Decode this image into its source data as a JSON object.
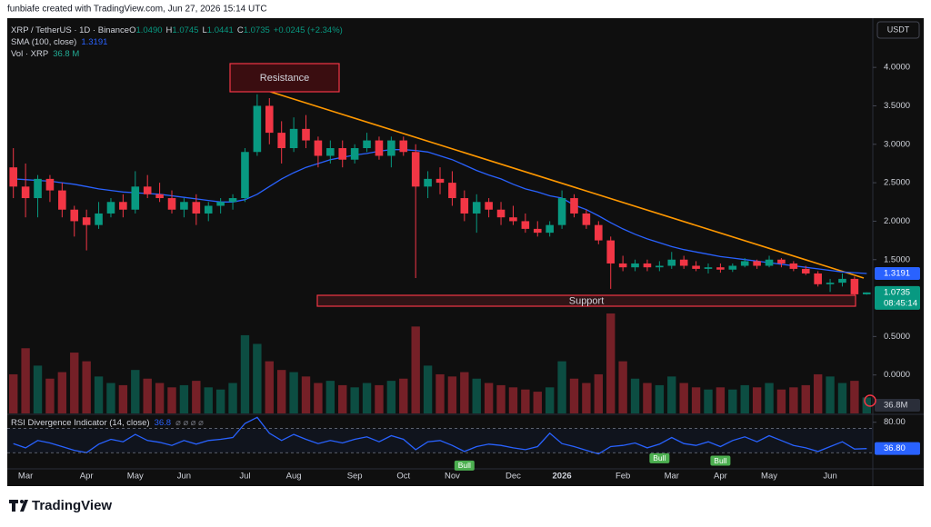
{
  "header": {
    "credit": "funbiafe created with TradingView.com, Jun 27, 2026 15:14 UTC",
    "currency": "USDT",
    "brand": "TradingView",
    "ohlc": [
      {
        "label": "O",
        "value": "1.0490"
      },
      {
        "label": "H",
        "value": "1.0745"
      },
      {
        "label": "L",
        "value": "1.0441"
      },
      {
        "label": "C",
        "value": "1.0735"
      }
    ],
    "change": "+0.0245 (+2.34%)"
  },
  "annotations": {
    "resistance": "Resistance",
    "support": "Support"
  },
  "chart_data": {
    "type": "candlestick",
    "title": "XRP / TetherUS · 1D · Binance",
    "categories": [
      null,
      "Mar",
      null,
      null,
      null,
      null,
      "Apr",
      null,
      null,
      null,
      "May",
      null,
      null,
      null,
      "Jun",
      null,
      null,
      null,
      null,
      "Jul",
      null,
      null,
      null,
      "Aug",
      null,
      null,
      null,
      null,
      "Sep",
      null,
      null,
      null,
      "Oct",
      null,
      null,
      null,
      "Nov",
      null,
      null,
      null,
      null,
      "Dec",
      null,
      null,
      null,
      "2026",
      null,
      null,
      null,
      null,
      "Feb",
      null,
      null,
      null,
      "Mar",
      null,
      null,
      null,
      "Apr",
      null,
      null,
      null,
      "May",
      null,
      null,
      null,
      null,
      "Jun",
      null,
      null,
      null
    ],
    "open": [
      2.7,
      2.45,
      2.3,
      2.55,
      2.4,
      2.15,
      2.05,
      1.95,
      2.1,
      2.25,
      2.15,
      2.45,
      2.35,
      2.3,
      2.15,
      2.25,
      2.1,
      2.2,
      2.25,
      2.3,
      2.9,
      3.5,
      3.15,
      2.95,
      3.2,
      3.05,
      2.85,
      2.95,
      2.8,
      2.95,
      3.05,
      2.85,
      3.05,
      2.9,
      2.45,
      2.55,
      2.5,
      2.3,
      2.1,
      2.25,
      2.15,
      2.05,
      2.0,
      1.9,
      1.85,
      1.95,
      2.3,
      2.1,
      1.95,
      1.75,
      1.45,
      1.4,
      1.45,
      1.4,
      1.42,
      1.5,
      1.42,
      1.38,
      1.4,
      1.37,
      1.42,
      1.48,
      1.42,
      1.5,
      1.45,
      1.38,
      1.32,
      1.18,
      1.2,
      1.25,
      1.049
    ],
    "high": [
      2.95,
      2.75,
      2.6,
      2.6,
      2.5,
      2.2,
      2.15,
      2.25,
      2.3,
      2.35,
      2.65,
      2.6,
      2.5,
      2.4,
      2.3,
      2.35,
      2.25,
      2.3,
      2.35,
      2.95,
      3.65,
      3.6,
      3.3,
      3.35,
      3.38,
      3.1,
      3.05,
      3.05,
      3.0,
      3.15,
      3.1,
      3.1,
      3.1,
      3.0,
      2.65,
      2.7,
      2.65,
      2.4,
      2.35,
      2.3,
      2.25,
      2.2,
      2.1,
      2.0,
      2.0,
      2.4,
      2.35,
      2.15,
      2.0,
      1.8,
      1.55,
      1.5,
      1.5,
      1.48,
      1.6,
      1.55,
      1.48,
      1.45,
      1.45,
      1.45,
      1.52,
      1.5,
      1.55,
      1.52,
      1.48,
      1.42,
      1.35,
      1.25,
      1.32,
      1.28,
      1.0745
    ],
    "low": [
      2.3,
      2.05,
      2.05,
      2.25,
      2.05,
      1.8,
      1.62,
      1.9,
      2.05,
      2.05,
      2.1,
      2.3,
      2.25,
      2.1,
      2.05,
      1.95,
      2.0,
      2.1,
      2.15,
      2.25,
      2.85,
      3.0,
      2.75,
      2.9,
      2.95,
      2.7,
      2.75,
      2.7,
      2.75,
      2.9,
      2.8,
      2.7,
      2.85,
      1.26,
      2.3,
      2.35,
      2.2,
      2.0,
      1.85,
      2.05,
      1.95,
      1.95,
      1.85,
      1.8,
      1.8,
      1.9,
      2.05,
      1.9,
      1.7,
      1.12,
      1.35,
      1.35,
      1.35,
      1.35,
      1.38,
      1.38,
      1.35,
      1.32,
      1.33,
      1.34,
      1.4,
      1.38,
      1.4,
      1.4,
      1.35,
      1.3,
      1.15,
      1.08,
      1.15,
      1.04,
      1.0441
    ],
    "close": [
      2.45,
      2.3,
      2.55,
      2.4,
      2.15,
      2.0,
      1.95,
      2.1,
      2.25,
      2.15,
      2.45,
      2.35,
      2.3,
      2.15,
      2.25,
      2.1,
      2.2,
      2.25,
      2.3,
      2.9,
      3.5,
      3.15,
      2.95,
      3.2,
      3.05,
      2.85,
      2.95,
      2.8,
      2.95,
      3.05,
      2.85,
      3.05,
      2.9,
      2.45,
      2.55,
      2.5,
      2.3,
      2.1,
      2.25,
      2.15,
      2.05,
      2.0,
      1.9,
      1.85,
      1.95,
      2.3,
      2.1,
      1.95,
      1.75,
      1.45,
      1.4,
      1.45,
      1.4,
      1.42,
      1.5,
      1.42,
      1.38,
      1.4,
      1.37,
      1.42,
      1.48,
      1.42,
      1.5,
      1.45,
      1.38,
      1.32,
      1.18,
      1.2,
      1.25,
      1.049,
      1.0735
    ],
    "up_color": "#089981",
    "down_color": "#f23645",
    "ylim": [
      -0.5,
      4.64
    ],
    "yticks": [
      {
        "value": 4,
        "label": "4.0000"
      },
      {
        "value": 3.5,
        "label": "3.5000"
      },
      {
        "value": 3,
        "label": "3.0000"
      },
      {
        "value": 2.5,
        "label": "2.5000"
      },
      {
        "value": 2,
        "label": "2.0000"
      },
      {
        "value": 1.5,
        "label": "1.5000"
      },
      {
        "value": 0.5,
        "label": "0.5000"
      },
      {
        "value": 0,
        "label": "0.0000"
      }
    ],
    "last_price": 1.0735,
    "countdown": "08:45:14",
    "sma": {
      "name": "SMA (100, close)",
      "color": "#2962ff",
      "values": [
        2.55,
        2.54,
        2.53,
        2.52,
        2.5,
        2.48,
        2.45,
        2.42,
        2.4,
        2.38,
        2.37,
        2.36,
        2.35,
        2.33,
        2.31,
        2.29,
        2.27,
        2.25,
        2.25,
        2.28,
        2.35,
        2.45,
        2.55,
        2.63,
        2.7,
        2.75,
        2.8,
        2.83,
        2.86,
        2.88,
        2.91,
        2.93,
        2.93,
        2.92,
        2.9,
        2.85,
        2.8,
        2.73,
        2.66,
        2.6,
        2.55,
        2.48,
        2.42,
        2.38,
        2.33,
        2.3,
        2.21,
        2.15,
        2.07,
        1.98,
        1.9,
        1.83,
        1.77,
        1.72,
        1.67,
        1.63,
        1.6,
        1.57,
        1.54,
        1.52,
        1.5,
        1.48,
        1.46,
        1.44,
        1.42,
        1.4,
        1.38,
        1.36,
        1.34,
        1.33,
        1.3191
      ],
      "last": 1.3191
    },
    "volume": {
      "name": "Vol · XRP",
      "legend_label": "36.8 M",
      "axis_label": "36.8M",
      "values": [
        90,
        150,
        110,
        80,
        95,
        140,
        120,
        85,
        70,
        65,
        100,
        80,
        70,
        60,
        65,
        75,
        60,
        55,
        70,
        180,
        160,
        120,
        100,
        95,
        85,
        70,
        75,
        65,
        60,
        70,
        65,
        75,
        80,
        200,
        110,
        90,
        85,
        95,
        80,
        70,
        65,
        60,
        55,
        50,
        60,
        120,
        80,
        70,
        90,
        230,
        120,
        80,
        70,
        65,
        85,
        70,
        60,
        55,
        60,
        55,
        65,
        60,
        70,
        55,
        60,
        65,
        90,
        85,
        70,
        75,
        36.8
      ]
    },
    "rsi": {
      "name": "RSI Divergence Indicator (14, close)",
      "color": "#2962ff",
      "ylim": [
        5,
        90
      ],
      "yticks": [
        {
          "value": 80,
          "label": "80.00"
        }
      ],
      "bands": [
        70,
        30
      ],
      "values": [
        45,
        38,
        50,
        46,
        40,
        34,
        30,
        44,
        52,
        48,
        60,
        50,
        47,
        42,
        50,
        44,
        50,
        52,
        55,
        78,
        88,
        62,
        50,
        60,
        52,
        45,
        50,
        46,
        52,
        56,
        48,
        58,
        52,
        35,
        48,
        50,
        42,
        32,
        40,
        44,
        42,
        38,
        35,
        40,
        62,
        45,
        40,
        34,
        28,
        40,
        42,
        46,
        38,
        44,
        55,
        45,
        42,
        48,
        40,
        50,
        56,
        48,
        58,
        50,
        42,
        38,
        32,
        40,
        48,
        36,
        36.8
      ],
      "last": 36.8,
      "last_label": "36.80",
      "signals": [
        null,
        null,
        null,
        null,
        null,
        null,
        null,
        null,
        null,
        null,
        null,
        null,
        null,
        null,
        null,
        null,
        null,
        null,
        null,
        null,
        null,
        null,
        null,
        null,
        null,
        null,
        null,
        null,
        null,
        null,
        null,
        null,
        null,
        null,
        null,
        null,
        null,
        "Bull",
        null,
        null,
        null,
        null,
        null,
        null,
        null,
        null,
        null,
        null,
        null,
        null,
        null,
        null,
        null,
        "Bull",
        null,
        null,
        null,
        null,
        "Bull",
        null,
        null,
        null,
        null,
        null,
        null,
        null,
        null,
        null,
        null,
        null,
        null
      ]
    }
  }
}
